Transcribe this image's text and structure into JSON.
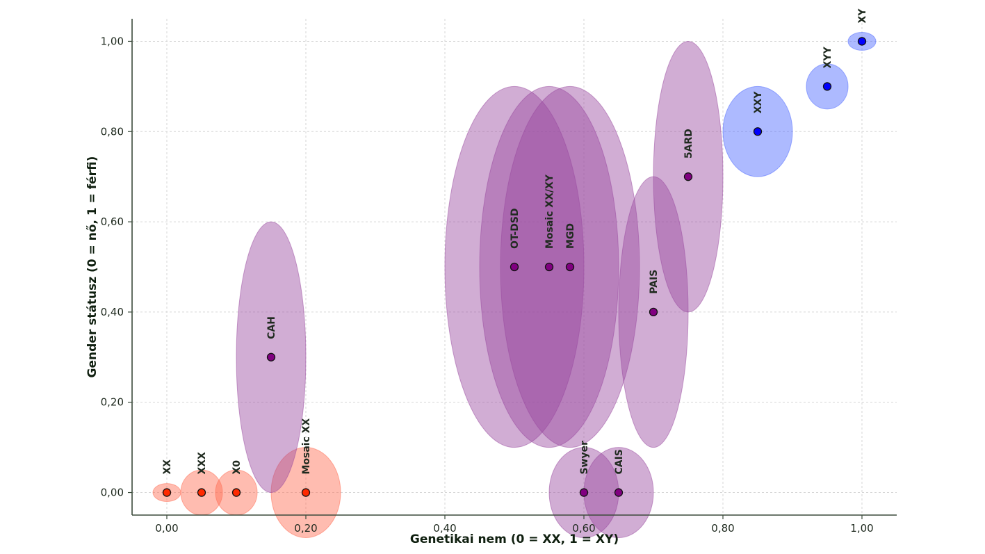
{
  "chart_data": {
    "type": "scatter",
    "title": "",
    "xlabel": "Genetikai nem (0 = XX, 1 = XY)",
    "ylabel": "Gender státusz (0 = nő, 1 = férfi)",
    "xlim": [
      -0.05,
      1.05
    ],
    "ylim": [
      -0.05,
      1.05
    ],
    "xticks": [
      0,
      0.2,
      0.4,
      0.6,
      0.8,
      1.0
    ],
    "yticks": [
      0,
      0.2,
      0.4,
      0.6,
      0.8,
      1.0
    ],
    "xtick_labels": [
      "0,00",
      "0,20",
      "0,40",
      "0,60",
      "0,80",
      "1,00"
    ],
    "ytick_labels": [
      "0,00",
      "0,20",
      "0,40",
      "0,60",
      "0,80",
      "1,00"
    ],
    "grid": true,
    "colors": {
      "female": "#ff2a00",
      "intersex": "#800080",
      "male": "#0000ff",
      "female_fill": "#ff6a50",
      "intersex_fill": "#9a4aa0",
      "male_fill": "#4a66ff"
    },
    "points": [
      {
        "label": "XX",
        "x": 0.0,
        "y": 0.0,
        "w": 0.04,
        "h": 0.04,
        "group": "female"
      },
      {
        "label": "XXX",
        "x": 0.05,
        "y": 0.0,
        "w": 0.06,
        "h": 0.1,
        "group": "female"
      },
      {
        "label": "X0",
        "x": 0.1,
        "y": 0.0,
        "w": 0.06,
        "h": 0.1,
        "group": "female"
      },
      {
        "label": "Mosaic XX",
        "x": 0.2,
        "y": 0.0,
        "w": 0.1,
        "h": 0.2,
        "group": "female"
      },
      {
        "label": "CAH",
        "x": 0.15,
        "y": 0.3,
        "w": 0.1,
        "h": 0.6,
        "group": "intersex"
      },
      {
        "label": "OT-DSD",
        "x": 0.5,
        "y": 0.5,
        "w": 0.2,
        "h": 0.8,
        "group": "intersex"
      },
      {
        "label": "Mosaic XX/XY",
        "x": 0.55,
        "y": 0.5,
        "w": 0.2,
        "h": 0.8,
        "group": "intersex"
      },
      {
        "label": "MGD",
        "x": 0.58,
        "y": 0.5,
        "w": 0.2,
        "h": 0.8,
        "group": "intersex"
      },
      {
        "label": "Swyer",
        "x": 0.6,
        "y": 0.0,
        "w": 0.1,
        "h": 0.2,
        "group": "intersex"
      },
      {
        "label": "CAIS",
        "x": 0.65,
        "y": 0.0,
        "w": 0.1,
        "h": 0.2,
        "group": "intersex"
      },
      {
        "label": "PAIS",
        "x": 0.7,
        "y": 0.4,
        "w": 0.1,
        "h": 0.6,
        "group": "intersex"
      },
      {
        "label": "5ARD",
        "x": 0.75,
        "y": 0.7,
        "w": 0.1,
        "h": 0.6,
        "group": "intersex"
      },
      {
        "label": "XXY",
        "x": 0.85,
        "y": 0.8,
        "w": 0.1,
        "h": 0.2,
        "group": "male"
      },
      {
        "label": "XYY",
        "x": 0.95,
        "y": 0.9,
        "w": 0.06,
        "h": 0.1,
        "group": "male"
      },
      {
        "label": "XY",
        "x": 1.0,
        "y": 1.0,
        "w": 0.04,
        "h": 0.04,
        "group": "male"
      }
    ]
  }
}
